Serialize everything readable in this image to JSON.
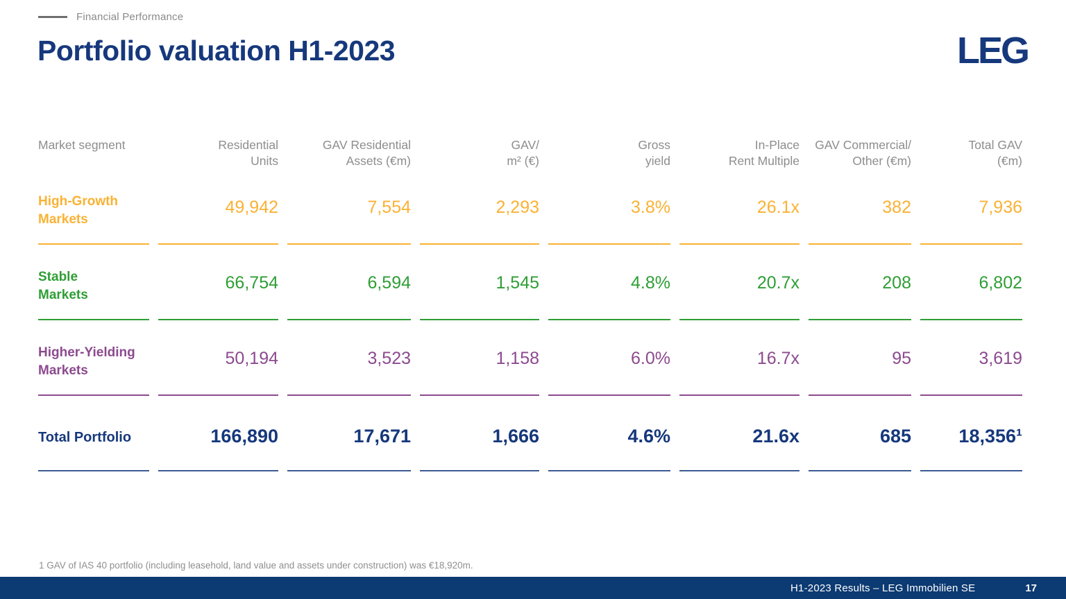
{
  "eyebrow": "Financial Performance",
  "title": "Portfolio valuation H1-2023",
  "logo_text": "LEG",
  "colors": {
    "brand_navy": "#16387c",
    "footer_navy": "#0c3a72",
    "high_growth_orange": "#f9b234",
    "stable_green": "#2f9e35",
    "higher_yielding_purple": "#8c4a8f",
    "header_gray": "#8d8d8d"
  },
  "table": {
    "columns": [
      {
        "line1": "Market segment",
        "line2": ""
      },
      {
        "line1": "Residential",
        "line2": "Units"
      },
      {
        "line1": "GAV Residential",
        "line2": "Assets (€m)"
      },
      {
        "line1": "GAV/",
        "line2": "m² (€)"
      },
      {
        "line1": "Gross",
        "line2": "yield"
      },
      {
        "line1": "In-Place",
        "line2": "Rent Multiple"
      },
      {
        "line1": "GAV Commercial/",
        "line2": "Other (€m)"
      },
      {
        "line1": "Total GAV",
        "line2": "(€m)"
      }
    ],
    "rows": [
      {
        "name_line1": "High-Growth",
        "name_line2": "Markets",
        "color": "#f9b234",
        "values": [
          "49,942",
          "7,554",
          "2,293",
          "3.8%",
          "26.1x",
          "382",
          "7,936"
        ]
      },
      {
        "name_line1": "Stable",
        "name_line2": "Markets",
        "color": "#2f9e35",
        "values": [
          "66,754",
          "6,594",
          "1,545",
          "4.8%",
          "20.7x",
          "208",
          "6,802"
        ]
      },
      {
        "name_line1": "Higher-Yielding",
        "name_line2": "Markets",
        "color": "#8c4a8f",
        "values": [
          "50,194",
          "3,523",
          "1,158",
          "6.0%",
          "16.7x",
          "95",
          "3,619"
        ]
      }
    ],
    "total_row": {
      "name": "Total Portfolio",
      "values": [
        "166,890",
        "17,671",
        "1,666",
        "4.6%",
        "21.6x",
        "685",
        "18,356¹"
      ]
    }
  },
  "footnote": "1 GAV of IAS 40 portfolio (including leasehold, land value and assets under construction) was €18,920m.",
  "footer": {
    "text": "H1-2023 Results – LEG Immobilien SE",
    "page": "17"
  }
}
